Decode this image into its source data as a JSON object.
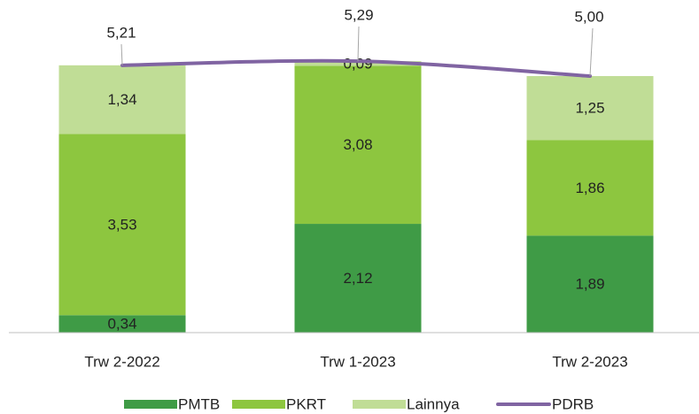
{
  "chart_data": {
    "type": "stacked_bar_line",
    "categories": [
      "Trw 2-2022",
      "Trw 1-2023",
      "Trw 2-2023"
    ],
    "ylim": [
      0,
      6
    ],
    "series": [
      {
        "name": "PMTB",
        "color": "#3f9b46",
        "values": [
          0.34,
          2.12,
          1.89
        ],
        "value_labels": [
          "0,34",
          "2,12",
          "1,89"
        ]
      },
      {
        "name": "PKRT",
        "color": "#8dc63f",
        "values": [
          3.53,
          3.08,
          1.86
        ],
        "value_labels": [
          "3,53",
          "3,08",
          "1,86"
        ]
      },
      {
        "name": "Lainnya",
        "color": "#c0dd96",
        "values": [
          1.34,
          0.09,
          1.25
        ],
        "value_labels": [
          "1,34",
          "0,09",
          "1,25"
        ]
      },
      {
        "name": "PDRB",
        "type": "line",
        "color": "#8064a2",
        "values": [
          5.21,
          5.29,
          5.0
        ],
        "value_labels": [
          "5,21",
          "5,29",
          "5,00"
        ]
      }
    ]
  }
}
